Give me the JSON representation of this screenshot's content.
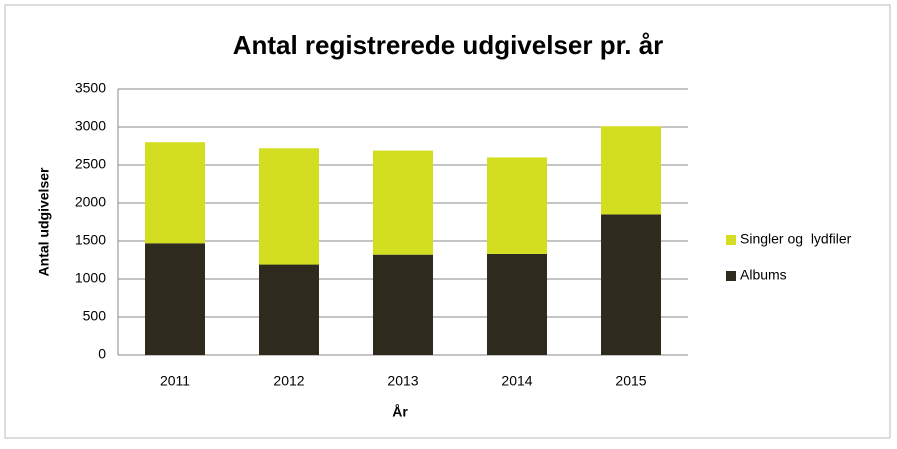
{
  "chart_data": {
    "type": "stacked_bar",
    "title": "Antal registrerede udgivelser pr. år",
    "categories": [
      "2011",
      "2012",
      "2013",
      "2014",
      "2015"
    ],
    "series": [
      {
        "name": "Albums",
        "color": "#2e2a1e",
        "values": [
          1470,
          1190,
          1320,
          1330,
          1850
        ]
      },
      {
        "name": "Singler og  lydfiler",
        "color": "#d4de21",
        "values": [
          1330,
          1530,
          1370,
          1270,
          1160
        ]
      }
    ],
    "ylim": [
      0,
      3500
    ],
    "yticks": [
      0,
      500,
      1000,
      1500,
      2000,
      2500,
      3000,
      3500
    ],
    "grid": true,
    "x_label": "År",
    "y_label": "Antal udgivelser",
    "legend": "right"
  }
}
